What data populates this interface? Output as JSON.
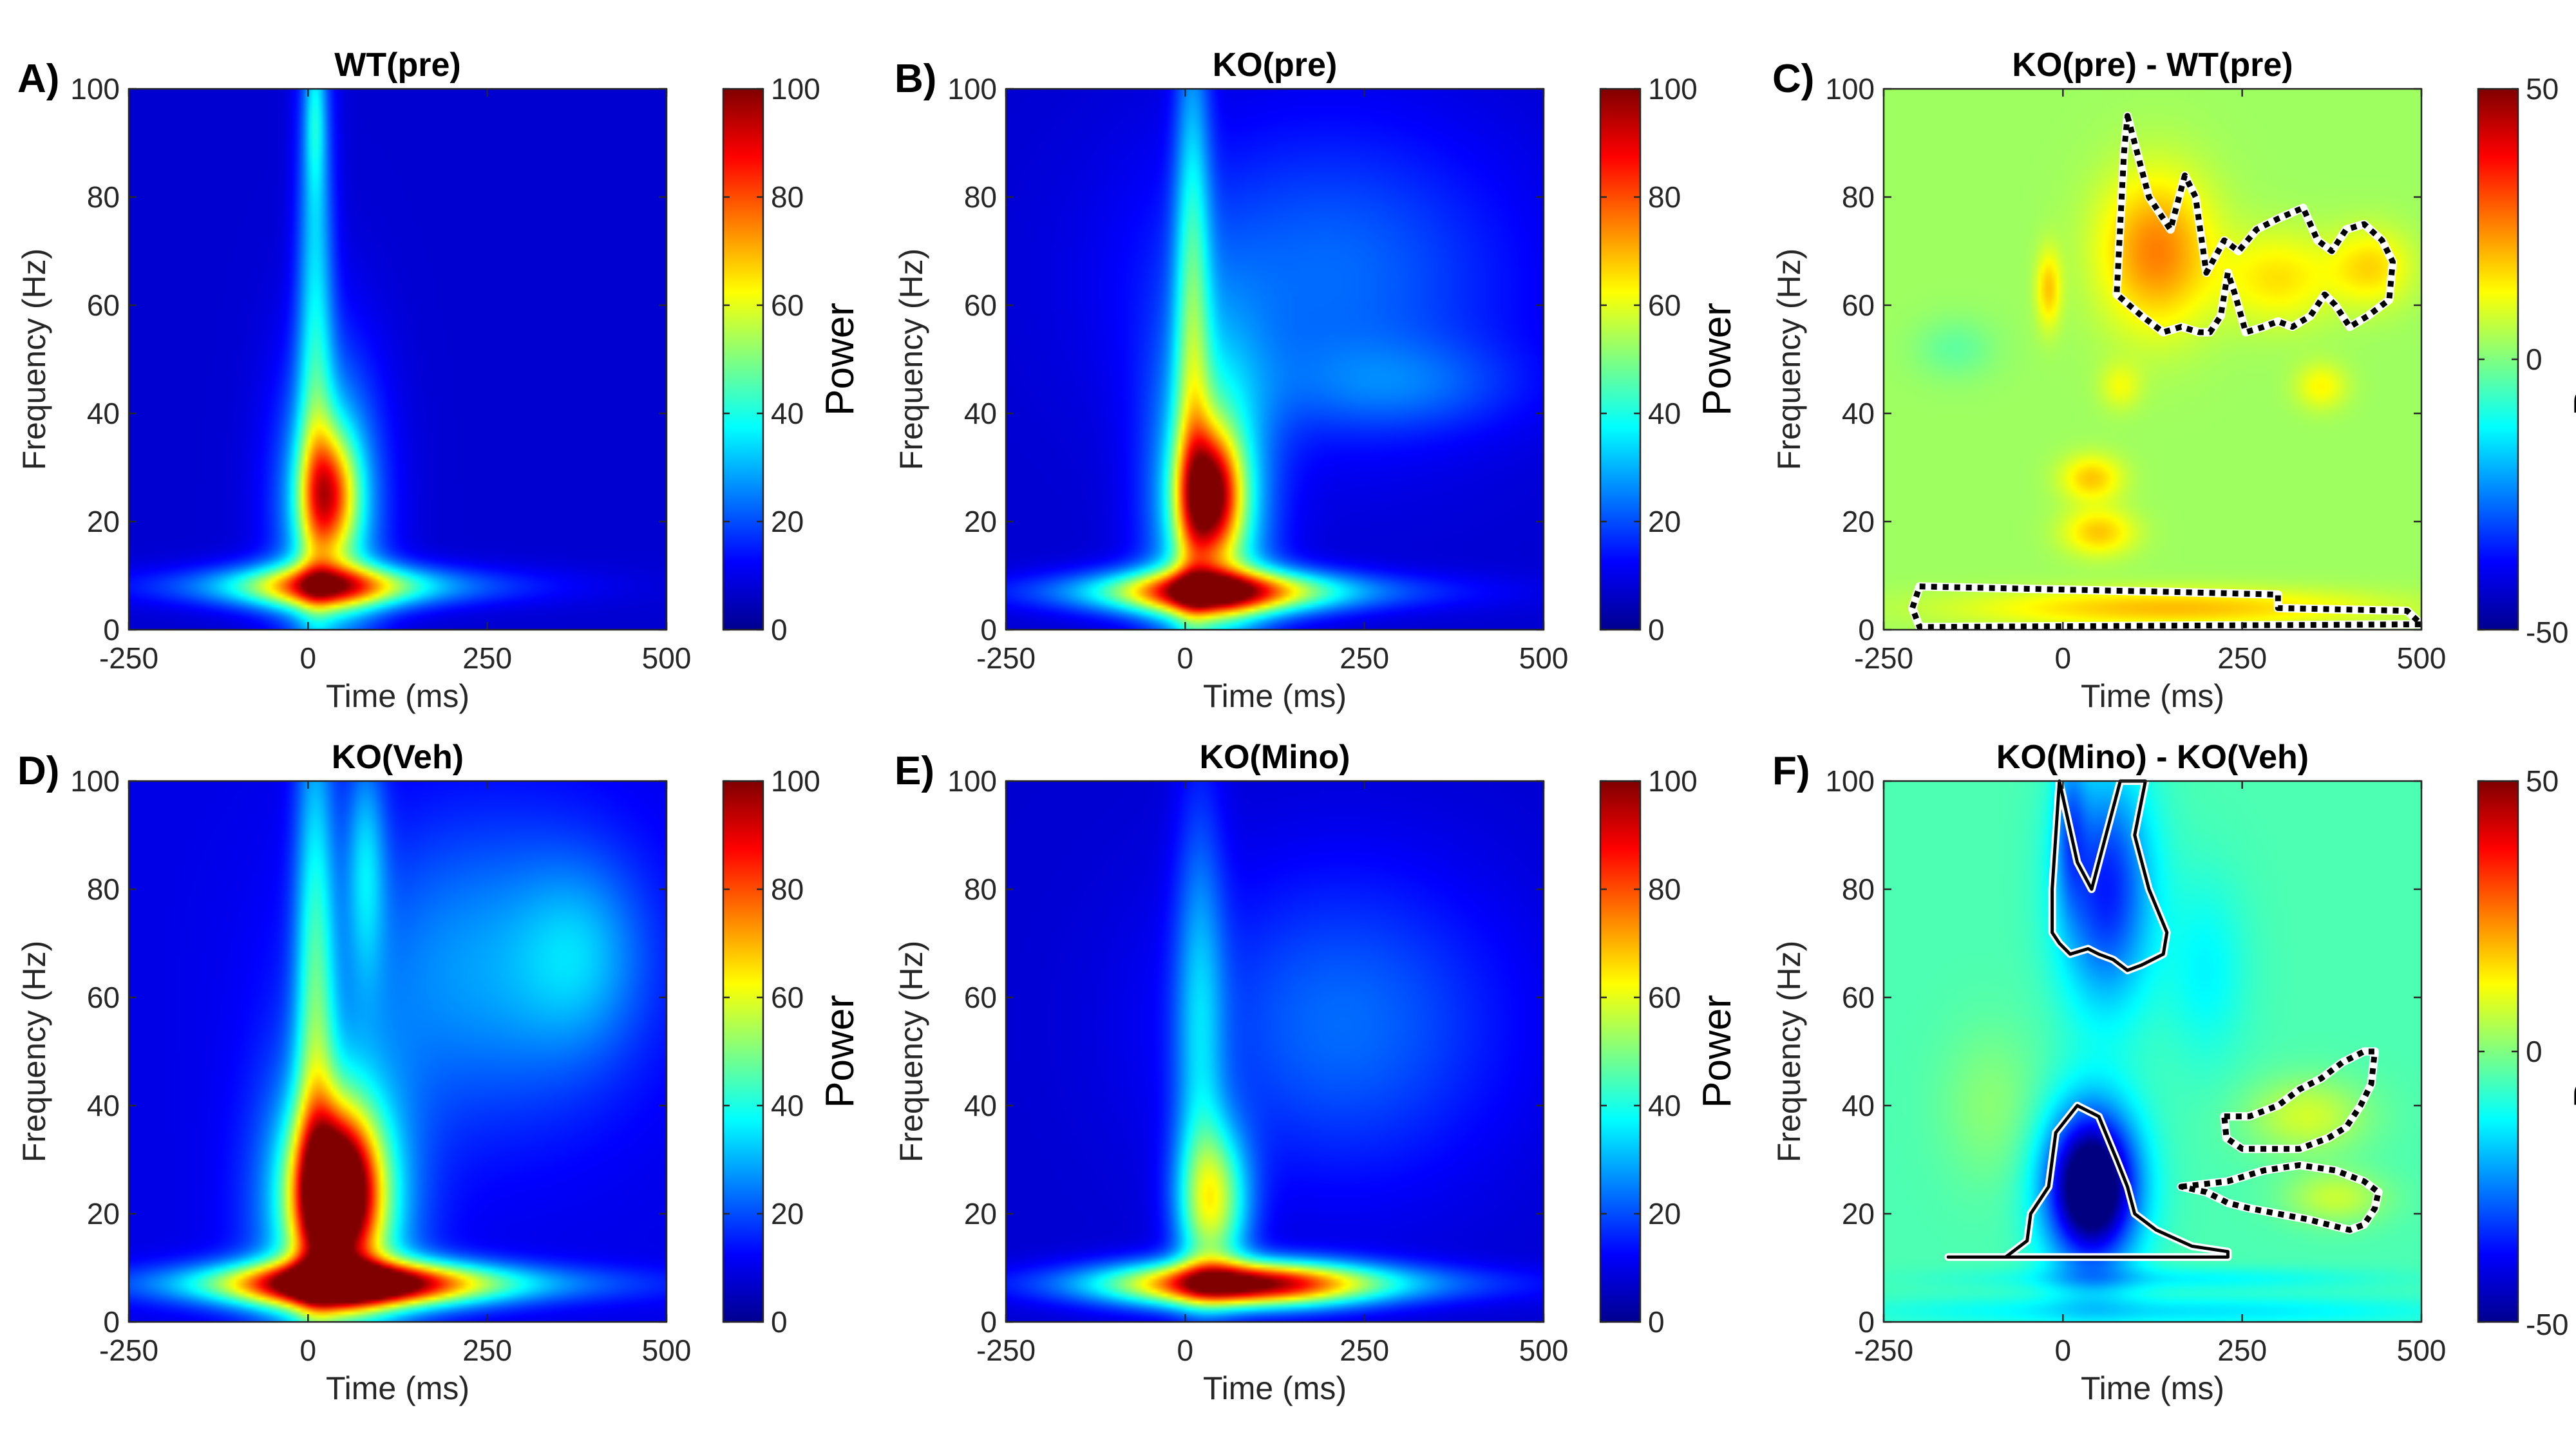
{
  "chart_data": [
    {
      "type": "heatmap",
      "panel": "A)",
      "title": "WT(pre)",
      "xlabel": "Time (ms)",
      "ylabel": "Frequency (Hz)",
      "xlim": [
        -250,
        500
      ],
      "ylim": [
        0,
        100
      ],
      "xticks": [
        "-250",
        "0",
        "250",
        "500"
      ],
      "yticks": [
        "0",
        "20",
        "40",
        "60",
        "80",
        "100"
      ],
      "colorbar": {
        "label": "Power",
        "range": [
          0,
          100
        ],
        "ticks": [
          "0",
          "20",
          "40",
          "60",
          "80",
          "100"
        ]
      },
      "blobs": [
        {
          "t": 30,
          "f": 25,
          "st": 28,
          "sf": 8,
          "a": 45
        },
        {
          "t": 30,
          "f": 22,
          "st": 50,
          "sf": 20,
          "a": 32
        },
        {
          "t": 25,
          "f": 8,
          "st": 85,
          "sf": 3,
          "a": 45
        },
        {
          "t": 40,
          "f": 8,
          "st": 180,
          "sf": 2.5,
          "a": 22
        },
        {
          "t": 10,
          "f": 60,
          "st": 18,
          "sf": 40,
          "a": 25
        },
        {
          "t": 10,
          "f": 95,
          "st": 10,
          "sf": 10,
          "a": 15
        }
      ],
      "base": 8,
      "contours": []
    },
    {
      "type": "heatmap",
      "panel": "B)",
      "title": "KO(pre)",
      "xlabel": "Time (ms)",
      "ylabel": "Frequency (Hz)",
      "xlim": [
        -250,
        500
      ],
      "ylim": [
        0,
        100
      ],
      "xticks": [
        "-250",
        "0",
        "250",
        "500"
      ],
      "yticks": [
        "0",
        "20",
        "40",
        "60",
        "80",
        "100"
      ],
      "colorbar": {
        "label": "Power",
        "range": [
          0,
          100
        ],
        "ticks": [
          "0",
          "20",
          "40",
          "60",
          "80",
          "100"
        ]
      },
      "blobs": [
        {
          "t": 35,
          "f": 25,
          "st": 30,
          "sf": 8,
          "a": 60
        },
        {
          "t": 35,
          "f": 22,
          "st": 55,
          "sf": 22,
          "a": 40
        },
        {
          "t": 40,
          "f": 7,
          "st": 100,
          "sf": 3,
          "a": 60
        },
        {
          "t": 60,
          "f": 7,
          "st": 200,
          "sf": 2.5,
          "a": 22
        },
        {
          "t": 10,
          "f": 60,
          "st": 18,
          "sf": 40,
          "a": 28
        },
        {
          "t": 200,
          "f": 65,
          "st": 180,
          "sf": 20,
          "a": 15
        },
        {
          "t": 300,
          "f": 45,
          "st": 120,
          "sf": 6,
          "a": 10
        }
      ],
      "base": 8,
      "contours": []
    },
    {
      "type": "heatmap",
      "panel": "C)",
      "title": "KO(pre) - WT(pre)",
      "xlabel": "Time (ms)",
      "ylabel": "Frequency (Hz)",
      "xlim": [
        -250,
        500
      ],
      "ylim": [
        0,
        100
      ],
      "xticks": [
        "-250",
        "0",
        "250",
        "500"
      ],
      "yticks": [
        "0",
        "20",
        "40",
        "60",
        "80",
        "100"
      ],
      "colorbar": {
        "label": "Power",
        "range": [
          -50,
          50
        ],
        "ticks": [
          "-50",
          "0",
          "50"
        ]
      },
      "blobs": [
        {
          "t": 130,
          "f": 70,
          "st": 55,
          "sf": 10,
          "a": 22
        },
        {
          "t": 300,
          "f": 65,
          "st": 55,
          "sf": 6,
          "a": 12
        },
        {
          "t": 430,
          "f": 67,
          "st": 40,
          "sf": 5,
          "a": 13
        },
        {
          "t": -20,
          "f": 63,
          "st": 12,
          "sf": 5,
          "a": 15
        },
        {
          "t": 40,
          "f": 28,
          "st": 30,
          "sf": 3,
          "a": 15
        },
        {
          "t": 50,
          "f": 18,
          "st": 35,
          "sf": 3,
          "a": 15
        },
        {
          "t": 150,
          "f": 4,
          "st": 200,
          "sf": 2.5,
          "a": 16
        },
        {
          "t": 360,
          "f": 45,
          "st": 25,
          "sf": 3,
          "a": 10
        },
        {
          "t": 80,
          "f": 45,
          "st": 20,
          "sf": 3,
          "a": 8
        },
        {
          "t": -150,
          "f": 52,
          "st": 40,
          "sf": 4,
          "a": -6
        }
      ],
      "base": 3,
      "contours": [
        {
          "style": "dashed",
          "points": [
            [
              90,
              95
            ],
            [
              120,
              80
            ],
            [
              150,
              74
            ],
            [
              170,
              84
            ],
            [
              185,
              80
            ],
            [
              200,
              66
            ],
            [
              225,
              72
            ],
            [
              245,
              70
            ],
            [
              270,
              74
            ],
            [
              300,
              76
            ],
            [
              335,
              78
            ],
            [
              355,
              72
            ],
            [
              375,
              70
            ],
            [
              395,
              74
            ],
            [
              420,
              75
            ],
            [
              445,
              72
            ],
            [
              460,
              68
            ],
            [
              455,
              61
            ],
            [
              425,
              58
            ],
            [
              400,
              56
            ],
            [
              380,
              60
            ],
            [
              365,
              62
            ],
            [
              345,
              58
            ],
            [
              320,
              56
            ],
            [
              300,
              57
            ],
            [
              280,
              56
            ],
            [
              255,
              55
            ],
            [
              240,
              62
            ],
            [
              230,
              66
            ],
            [
              220,
              58
            ],
            [
              205,
              55
            ],
            [
              190,
              55
            ],
            [
              165,
              56
            ],
            [
              140,
              55
            ],
            [
              110,
              58
            ],
            [
              75,
              62
            ],
            [
              80,
              75
            ],
            [
              85,
              88
            ]
          ]
        },
        {
          "style": "dashed",
          "points": [
            [
              -200,
              8
            ],
            [
              150,
              7
            ],
            [
              300,
              6.5
            ],
            [
              300,
              4
            ],
            [
              480,
              3.5
            ],
            [
              500,
              1
            ],
            [
              -200,
              0.5
            ],
            [
              -210,
              4
            ]
          ]
        }
      ]
    },
    {
      "type": "heatmap",
      "panel": "D)",
      "title": "KO(Veh)",
      "xlabel": "Time (ms)",
      "ylabel": "Frequency (Hz)",
      "xlim": [
        -250,
        500
      ],
      "ylim": [
        0,
        100
      ],
      "xticks": [
        "-250",
        "0",
        "250",
        "500"
      ],
      "yticks": [
        "0",
        "20",
        "40",
        "60",
        "80",
        "100"
      ],
      "colorbar": {
        "label": "Power",
        "range": [
          0,
          100
        ],
        "ticks": [
          "0",
          "20",
          "40",
          "60",
          "80",
          "100"
        ]
      },
      "blobs": [
        {
          "t": 40,
          "f": 24,
          "st": 40,
          "sf": 10,
          "a": 90
        },
        {
          "t": 40,
          "f": 20,
          "st": 70,
          "sf": 20,
          "a": 40
        },
        {
          "t": 60,
          "f": 7,
          "st": 120,
          "sf": 3,
          "a": 80
        },
        {
          "t": 100,
          "f": 7,
          "st": 230,
          "sf": 2.5,
          "a": 25
        },
        {
          "t": 10,
          "f": 60,
          "st": 20,
          "sf": 40,
          "a": 30
        },
        {
          "t": 80,
          "f": 85,
          "st": 20,
          "sf": 15,
          "a": 20
        },
        {
          "t": 250,
          "f": 65,
          "st": 150,
          "sf": 20,
          "a": 18
        },
        {
          "t": 380,
          "f": 68,
          "st": 60,
          "sf": 12,
          "a": 12
        }
      ],
      "base": 10,
      "contours": []
    },
    {
      "type": "heatmap",
      "panel": "E)",
      "title": "KO(Mino)",
      "xlabel": "Time (ms)",
      "ylabel": "Frequency (Hz)",
      "xlim": [
        -250,
        500
      ],
      "ylim": [
        0,
        100
      ],
      "xticks": [
        "-250",
        "0",
        "250",
        "500"
      ],
      "yticks": [
        "0",
        "20",
        "40",
        "60",
        "80",
        "100"
      ],
      "colorbar": {
        "label": "Power",
        "range": [
          0,
          100
        ],
        "ticks": [
          "0",
          "20",
          "40",
          "60",
          "80",
          "100"
        ]
      },
      "blobs": [
        {
          "t": 40,
          "f": 22,
          "st": 35,
          "sf": 10,
          "a": 45
        },
        {
          "t": 80,
          "f": 7,
          "st": 120,
          "sf": 3,
          "a": 75
        },
        {
          "t": 120,
          "f": 7,
          "st": 230,
          "sf": 2.5,
          "a": 20
        },
        {
          "t": 20,
          "f": 55,
          "st": 25,
          "sf": 30,
          "a": 20
        },
        {
          "t": 220,
          "f": 55,
          "st": 160,
          "sf": 20,
          "a": 15
        }
      ],
      "base": 8,
      "contours": []
    },
    {
      "type": "heatmap",
      "panel": "F)",
      "title": "KO(Mino) - KO(Veh)",
      "xlabel": "Time (ms)",
      "ylabel": "Frequency (Hz)",
      "xlim": [
        -250,
        500
      ],
      "ylim": [
        0,
        100
      ],
      "xticks": [
        "-250",
        "0",
        "250",
        "500"
      ],
      "yticks": [
        "0",
        "20",
        "40",
        "60",
        "80",
        "100"
      ],
      "colorbar": {
        "label": "Power",
        "range": [
          -50,
          50
        ],
        "ticks": [
          "-50",
          "0",
          "50"
        ]
      },
      "blobs": [
        {
          "t": 40,
          "f": 25,
          "st": 45,
          "sf": 10,
          "a": -60
        },
        {
          "t": 60,
          "f": 80,
          "st": 45,
          "sf": 15,
          "a": -30
        },
        {
          "t": 10,
          "f": 92,
          "st": 15,
          "sf": 10,
          "a": -15
        },
        {
          "t": 340,
          "f": 38,
          "st": 60,
          "sf": 5,
          "a": 13
        },
        {
          "t": 380,
          "f": 23,
          "st": 50,
          "sf": 3.5,
          "a": 12
        },
        {
          "t": 150,
          "f": 8,
          "st": 200,
          "sf": 1.5,
          "a": -8
        },
        {
          "t": -100,
          "f": 40,
          "st": 50,
          "sf": 10,
          "a": 6
        },
        {
          "t": 200,
          "f": 65,
          "st": 40,
          "sf": 12,
          "a": -8
        },
        {
          "t": 150,
          "f": 2,
          "st": 300,
          "sf": 2,
          "a": -10
        }
      ],
      "base": -5,
      "contours": [
        {
          "style": "solid",
          "points": [
            [
              -5,
              100
            ],
            [
              20,
              85
            ],
            [
              40,
              80
            ],
            [
              60,
              90
            ],
            [
              80,
              100
            ],
            [
              115,
              100
            ],
            [
              100,
              90
            ],
            [
              120,
              80
            ],
            [
              145,
              72
            ],
            [
              140,
              68
            ],
            [
              110,
              66
            ],
            [
              90,
              65
            ],
            [
              70,
              67
            ],
            [
              50,
              68
            ],
            [
              35,
              69
            ],
            [
              10,
              68
            ],
            [
              -5,
              70
            ],
            [
              -15,
              72
            ],
            [
              -15,
              80
            ],
            [
              -10,
              90
            ]
          ]
        },
        {
          "style": "solid",
          "points": [
            [
              -160,
              12
            ],
            [
              -80,
              12
            ],
            [
              -50,
              15
            ],
            [
              -45,
              20
            ],
            [
              -20,
              25
            ],
            [
              -10,
              35
            ],
            [
              20,
              40
            ],
            [
              50,
              38
            ],
            [
              75,
              30
            ],
            [
              90,
              25
            ],
            [
              100,
              20
            ],
            [
              130,
              17
            ],
            [
              180,
              14
            ],
            [
              230,
              13
            ],
            [
              230,
              12
            ],
            [
              -160,
              12
            ]
          ]
        },
        {
          "style": "dashed",
          "points": [
            [
              225,
              38
            ],
            [
              260,
              38
            ],
            [
              300,
              40
            ],
            [
              330,
              43
            ],
            [
              360,
              45
            ],
            [
              390,
              48
            ],
            [
              420,
              50
            ],
            [
              435,
              50
            ],
            [
              430,
              44
            ],
            [
              415,
              40
            ],
            [
              395,
              36
            ],
            [
              370,
              34
            ],
            [
              330,
              32
            ],
            [
              290,
              32
            ],
            [
              250,
              32
            ],
            [
              228,
              34
            ]
          ]
        },
        {
          "style": "dashed",
          "points": [
            [
              165,
              25
            ],
            [
              230,
              26
            ],
            [
              280,
              28
            ],
            [
              330,
              29
            ],
            [
              380,
              28
            ],
            [
              420,
              26
            ],
            [
              440,
              24
            ],
            [
              435,
              21
            ],
            [
              420,
              18
            ],
            [
              400,
              17
            ],
            [
              370,
              18
            ],
            [
              340,
              19
            ],
            [
              300,
              20
            ],
            [
              260,
              21
            ],
            [
              230,
              22
            ],
            [
              200,
              24
            ]
          ]
        }
      ]
    }
  ]
}
